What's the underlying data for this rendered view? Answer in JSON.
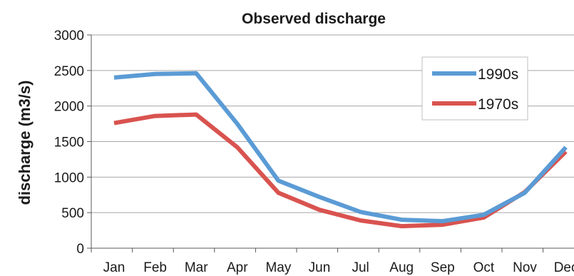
{
  "chart_data": {
    "type": "line",
    "title": "Observed discharge",
    "xlabel": "",
    "ylabel": "discharge (m3/s)",
    "ylim": [
      0,
      3000
    ],
    "yticks": [
      0,
      500,
      1000,
      1500,
      2000,
      2500,
      3000
    ],
    "categories": [
      "Jan",
      "Feb",
      "Mar",
      "Apr",
      "May",
      "Jun",
      "Jul",
      "Aug",
      "Sep",
      "Oct",
      "Nov",
      "Dec"
    ],
    "grid": true,
    "legend_position": "top-right",
    "series": [
      {
        "name": "1990s",
        "color": "#5b9bd5",
        "values": [
          2400,
          2450,
          2460,
          1750,
          950,
          720,
          510,
          400,
          380,
          470,
          780,
          1420
        ]
      },
      {
        "name": "1970s",
        "color": "#d9534f",
        "values": [
          1760,
          1860,
          1880,
          1420,
          780,
          540,
          390,
          310,
          330,
          430,
          790,
          1360
        ]
      }
    ]
  }
}
